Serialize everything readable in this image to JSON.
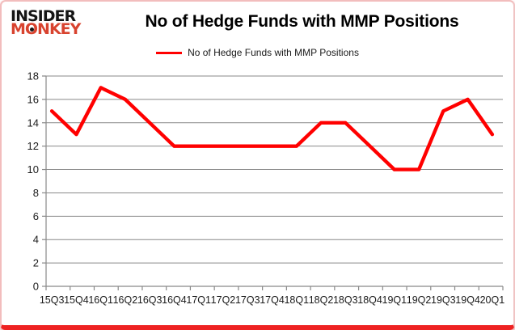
{
  "page": {
    "logo": {
      "line1": "INSIDER",
      "line2": "MONKEY"
    },
    "title": "No of Hedge Funds with MMP Positions",
    "legend": {
      "label": "No of Hedge Funds with MMP Positions"
    }
  },
  "colors": {
    "series_line": "#ff0000",
    "gridline": "#898989",
    "axis_line": "#898989",
    "axis_text": "#1a1a1a",
    "logo_black": "#151515",
    "logo_red": "#d8432f",
    "frame_border_pink": "#f2bdbd",
    "frame_border_bottom_red": "#ee2222"
  },
  "chart_data": {
    "type": "line",
    "title": "No of Hedge Funds with MMP Positions",
    "categories": [
      "15Q3",
      "15Q4",
      "16Q1",
      "16Q2",
      "16Q3",
      "16Q4",
      "17Q1",
      "17Q2",
      "17Q3",
      "17Q4",
      "18Q1",
      "18Q2",
      "18Q3",
      "18Q4",
      "19Q1",
      "19Q2",
      "19Q3",
      "19Q4",
      "20Q1"
    ],
    "series": [
      {
        "name": "No of Hedge Funds with MMP Positions",
        "color": "#ff0000",
        "values": [
          15,
          13,
          17,
          16,
          14,
          12,
          12,
          12,
          12,
          12,
          12,
          14,
          14,
          12,
          10,
          10,
          15,
          16,
          13
        ]
      }
    ],
    "xlabel": "",
    "ylabel": "",
    "ylim": [
      0,
      18
    ],
    "yticks": [
      0,
      2,
      4,
      6,
      8,
      10,
      12,
      14,
      16,
      18
    ],
    "grid": true,
    "legend_position": "top-center"
  }
}
